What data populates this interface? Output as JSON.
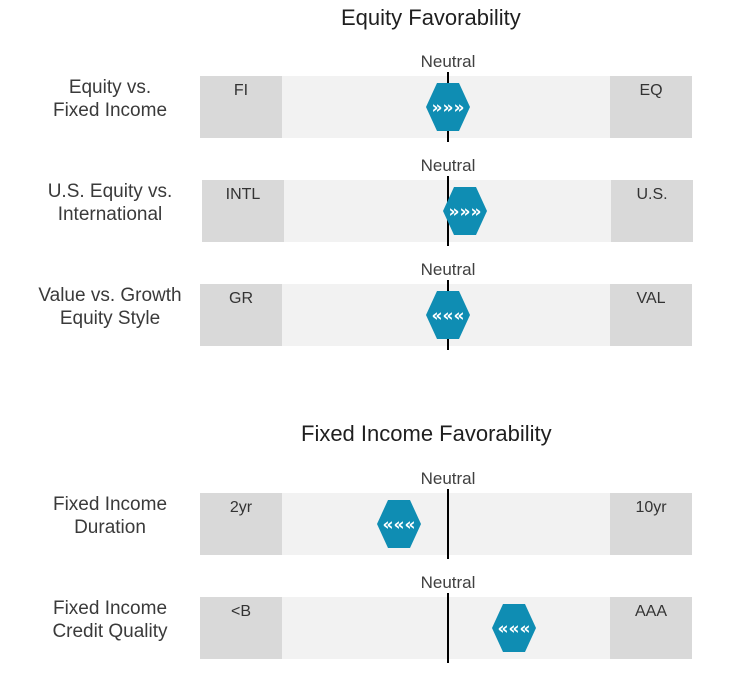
{
  "equity_section": {
    "title": "Equity Favorability",
    "rows": [
      {
        "label_lines": [
          "Equity vs.",
          "Fixed Income"
        ],
        "neutral_label": "Neutral",
        "left_label": "FI",
        "right_label": "EQ",
        "marker_arrows": "»»»",
        "marker_direction": "right",
        "position": 0.0
      },
      {
        "label_lines": [
          "U.S. Equity vs.",
          "International"
        ],
        "neutral_label": "Neutral",
        "left_label": "INTL",
        "right_label": "U.S.",
        "marker_arrows": "»»»",
        "marker_direction": "right",
        "position": 0.1
      },
      {
        "label_lines": [
          "Value vs. Growth",
          "Equity Style"
        ],
        "neutral_label": "Neutral",
        "left_label": "GR",
        "right_label": "VAL",
        "marker_arrows": "«««",
        "marker_direction": "left",
        "position": 0.0
      }
    ]
  },
  "fixed_income_section": {
    "title": "Fixed Income Favorability",
    "rows": [
      {
        "label_lines": [
          "Fixed Income",
          "Duration"
        ],
        "neutral_label": "Neutral",
        "left_label": "2yr",
        "right_label": "10yr",
        "marker_arrows": "«««",
        "marker_direction": "left",
        "position": -0.3
      },
      {
        "label_lines": [
          "Fixed Income",
          "Credit Quality"
        ],
        "neutral_label": "Neutral",
        "left_label": "<B",
        "right_label": "AAA",
        "marker_arrows": "«««",
        "marker_direction": "left",
        "position": 0.4
      }
    ]
  },
  "colors": {
    "marker": "#0f8db3",
    "track": "#f2f2f2",
    "end_block": "#d9d9d9"
  }
}
